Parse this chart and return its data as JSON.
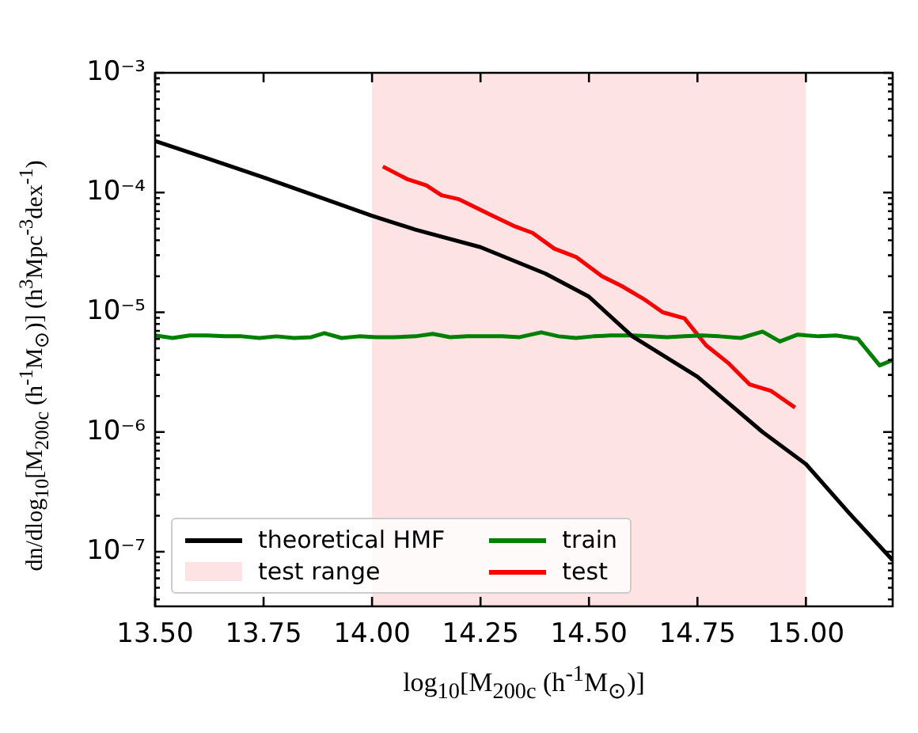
{
  "chart_data": {
    "type": "line",
    "xlabel": "log$_{10}$[M$_{200c}$ (h$^{-1}$M$_{⊙}$)]",
    "ylabel": "dn/dlog$_{10}$[M$_{200c}$ (h$^{-1}$M$_{⊙}$)] (h$^{3}$Mpc$^{-3}$dex$^{-1}$)",
    "series": [
      {
        "name": "theoretical HMF",
        "color": "#000000",
        "x": [
          13.5,
          13.75,
          14.0,
          14.1,
          14.25,
          14.4,
          14.5,
          14.6,
          14.75,
          14.9,
          15.0,
          15.1,
          15.2
        ],
        "values": [
          0.00027,
          0.000134,
          6.4e-05,
          4.9e-05,
          3.5e-05,
          2.1e-05,
          1.35e-05,
          6.3e-06,
          2.9e-06,
          1e-06,
          5.4e-07,
          2.1e-07,
          8.5e-08
        ]
      },
      {
        "name": "train",
        "color": "#008000",
        "x": [
          13.5,
          13.54,
          13.58,
          13.62,
          13.66,
          13.7,
          13.74,
          13.78,
          13.82,
          13.86,
          13.89,
          13.93,
          13.97,
          14.01,
          14.05,
          14.1,
          14.14,
          14.18,
          14.22,
          14.26,
          14.3,
          14.34,
          14.39,
          14.43,
          14.47,
          14.51,
          14.55,
          14.6,
          14.64,
          14.68,
          14.72,
          14.76,
          14.8,
          14.85,
          14.9,
          14.94,
          14.98,
          15.03,
          15.07,
          15.12,
          15.17,
          15.2
        ],
        "values": [
          6.4e-06,
          6.1e-06,
          6.4e-06,
          6.4e-06,
          6.3e-06,
          6.3e-06,
          6.1e-06,
          6.3e-06,
          6.1e-06,
          6.2e-06,
          6.7e-06,
          6.1e-06,
          6.3e-06,
          6.2e-06,
          6.2e-06,
          6.3e-06,
          6.6e-06,
          6.2e-06,
          6.3e-06,
          6.3e-06,
          6.3e-06,
          6.2e-06,
          6.8e-06,
          6.3e-06,
          6.1e-06,
          6.3e-06,
          6.4e-06,
          6.4e-06,
          6.3e-06,
          6.2e-06,
          6.3e-06,
          6.4e-06,
          6.3e-06,
          6.1e-06,
          6.9e-06,
          5.7e-06,
          6.5e-06,
          6.3e-06,
          6.4e-06,
          6e-06,
          3.6e-06,
          4e-06
        ]
      },
      {
        "name": "test",
        "color": "#ff0000",
        "x": [
          14.025,
          14.08,
          14.125,
          14.16,
          14.2,
          14.27,
          14.33,
          14.37,
          14.42,
          14.47,
          14.53,
          14.575,
          14.625,
          14.67,
          14.72,
          14.77,
          14.82,
          14.87,
          14.92,
          14.975
        ],
        "values": [
          0.000165,
          0.00013,
          0.000115,
          9.5e-05,
          8.8e-05,
          6.6e-05,
          5.2e-05,
          4.6e-05,
          3.4e-05,
          2.9e-05,
          2e-05,
          1.66e-05,
          1.3e-05,
          1e-05,
          8.9e-06,
          5.3e-06,
          3.8e-06,
          2.5e-06,
          2.2e-06,
          1.6e-06
        ]
      }
    ],
    "bands": [
      {
        "axis": "x",
        "from": 14.0,
        "to": 15.0,
        "label": "test range",
        "color": "#fde3e3"
      }
    ],
    "log": "y",
    "xlim": [
      13.5,
      15.2
    ],
    "xticks": [
      {
        "value": 13.5,
        "label": "13.50"
      },
      13.75,
      {
        "value": 14.0,
        "label": "14.00"
      },
      14.25,
      {
        "value": 14.5,
        "label": "14.50"
      },
      14.75,
      {
        "value": 15.0,
        "label": "15.00"
      }
    ],
    "ylim": [
      3.5e-08,
      0.001
    ],
    "yticks": [
      {
        "value": 4e-08,
        "label": null
      },
      {
        "value": 5e-08,
        "label": null
      },
      {
        "value": 6e-08,
        "label": null
      },
      {
        "value": 7e-08,
        "label": null
      },
      {
        "value": 8e-08,
        "label": null
      },
      {
        "value": 9e-08,
        "label": null
      },
      {
        "value": 1e-07,
        "label": "10⁻⁷"
      },
      {
        "value": 2e-07,
        "label": null
      },
      {
        "value": 3e-07,
        "label": null
      },
      {
        "value": 4e-07,
        "label": null
      },
      {
        "value": 5e-07,
        "label": null
      },
      {
        "value": 6e-07,
        "label": null
      },
      {
        "value": 7e-07,
        "label": null
      },
      {
        "value": 8e-07,
        "label": null
      },
      {
        "value": 9e-07,
        "label": null
      },
      {
        "value": 1e-06,
        "label": "10⁻⁶"
      },
      {
        "value": 2e-06,
        "label": null
      },
      {
        "value": 3e-06,
        "label": null
      },
      {
        "value": 4e-06,
        "label": null
      },
      {
        "value": 5e-06,
        "label": null
      },
      {
        "value": 6e-06,
        "label": null
      },
      {
        "value": 7e-06,
        "label": null
      },
      {
        "value": 8e-06,
        "label": null
      },
      {
        "value": 9e-06,
        "label": null
      },
      {
        "value": 1e-05,
        "label": "10⁻⁵"
      },
      {
        "value": 2e-05,
        "label": null
      },
      {
        "value": 3e-05,
        "label": null
      },
      {
        "value": 4e-05,
        "label": null
      },
      {
        "value": 5e-05,
        "label": null
      },
      {
        "value": 6e-05,
        "label": null
      },
      {
        "value": 7e-05,
        "label": null
      },
      {
        "value": 8e-05,
        "label": null
      },
      {
        "value": 9e-05,
        "label": null
      },
      {
        "value": 0.0001,
        "label": "10⁻⁴"
      },
      {
        "value": 0.0002,
        "label": null
      },
      {
        "value": 0.0003,
        "label": null
      },
      {
        "value": 0.0004,
        "label": null
      },
      {
        "value": 0.0005,
        "label": null
      },
      {
        "value": 0.0006,
        "label": null
      },
      {
        "value": 0.0007,
        "label": null
      },
      {
        "value": 0.0008,
        "label": null
      },
      {
        "value": 0.0009,
        "label": null
      },
      {
        "value": 0.001,
        "label": "10⁻³"
      }
    ],
    "legend": "bottom left",
    "marker": "none"
  }
}
